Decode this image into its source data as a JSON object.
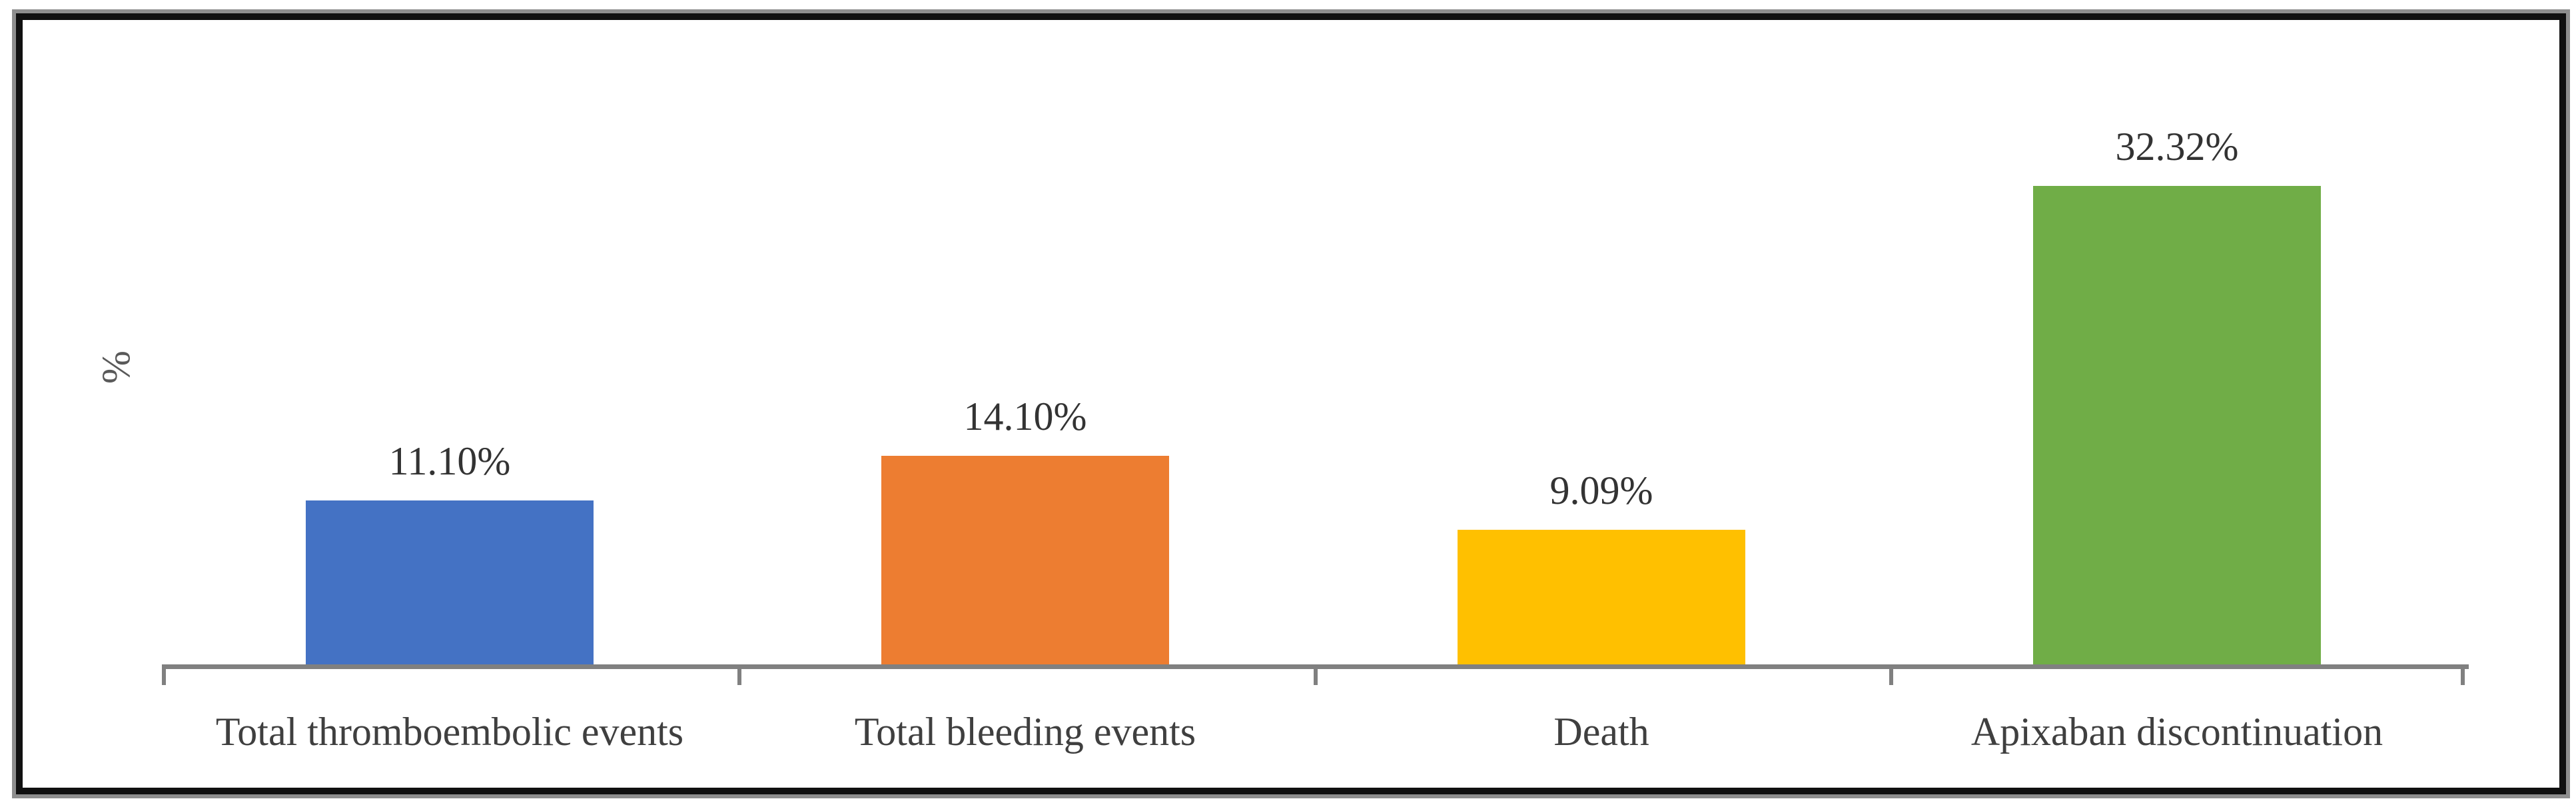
{
  "figure": {
    "background_color": "#ffffff",
    "frame_border_color": "#101010",
    "frame_outline_color": "#8e8e8e"
  },
  "axis": {
    "y_label": "%",
    "line_color": "#808080",
    "tick_count": 5
  },
  "chart_data": {
    "type": "bar",
    "categories": [
      "Total thromboembolic events",
      "Total bleeding events",
      "Death",
      "Apixaban discontinuation"
    ],
    "values": [
      11.1,
      14.1,
      9.09,
      32.32
    ],
    "value_labels": [
      "11.10%",
      "14.10%",
      "9.09%",
      "32.32%"
    ],
    "bar_colors": [
      "#4472C4",
      "#ED7D31",
      "#FFC000",
      "#70AD47"
    ],
    "title": "",
    "xlabel": "",
    "ylabel": "%",
    "ylim": [
      0,
      44
    ],
    "grid": false,
    "legend": "none",
    "data_labels_position": "above-bar"
  }
}
